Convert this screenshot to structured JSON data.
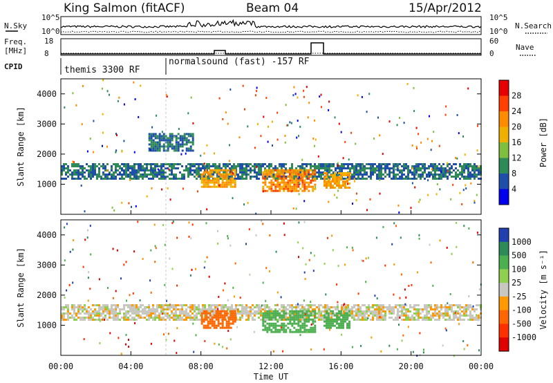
{
  "header": {
    "station": "King Salmon (fitACF)",
    "beam": "Beam 04",
    "date": "15/Apr/2012"
  },
  "top_panels": {
    "nsky_label": "N.Sky",
    "nsearch_label": "N.Search",
    "noise_ticks": [
      "10^5",
      "10^0"
    ],
    "freq_label_line1": "Freq.",
    "freq_label_line2": "[MHz]",
    "freq_ticks": [
      "18",
      "8"
    ],
    "nave_label": "Nave",
    "nave_ticks": [
      "60",
      "0"
    ],
    "cpid_label": "CPID",
    "cpid_segments": [
      "themis 3300 RF",
      "normalsound (fast) -157 RF"
    ]
  },
  "chart_data": [
    {
      "type": "heatmap",
      "name": "power",
      "ylabel": "Slant Range [km]",
      "ylim": [
        0,
        4500
      ],
      "yticks": [
        1000,
        2000,
        3000,
        4000
      ],
      "xlim_hours": [
        0,
        24
      ],
      "colorbar": {
        "label": "Power [dB]",
        "ticks": [
          "28",
          "24",
          "20",
          "16",
          "12",
          "8",
          "4"
        ],
        "colors": [
          "#e60000",
          "#ff4000",
          "#ff8c00",
          "#f0b000",
          "#7fbf3f",
          "#2e8b57",
          "#1f4fa8",
          "#0000ee"
        ]
      },
      "echo_bands": [
        {
          "from_hour": 0,
          "to_hour": 24,
          "range_km": [
            1200,
            1700
          ],
          "power_db": 8
        },
        {
          "from_hour": 5,
          "to_hour": 7.5,
          "range_km": [
            2100,
            2700
          ],
          "power_db": 8
        },
        {
          "from_hour": 8,
          "to_hour": 10,
          "range_km": [
            900,
            1500
          ],
          "power_db": 20
        },
        {
          "from_hour": 11.5,
          "to_hour": 14.5,
          "range_km": [
            800,
            1500
          ],
          "power_db": 22
        },
        {
          "from_hour": 15,
          "to_hour": 16.5,
          "range_km": [
            900,
            1400
          ],
          "power_db": 20
        }
      ]
    },
    {
      "type": "heatmap",
      "name": "velocity",
      "ylabel": "Slant Range [km]",
      "xlabel": "Time UT",
      "ylim": [
        0,
        4500
      ],
      "yticks": [
        1000,
        2000,
        3000,
        4000
      ],
      "xticks": [
        "00:00",
        "04:00",
        "08:00",
        "12:00",
        "16:00",
        "20:00",
        "00:00"
      ],
      "colorbar": {
        "label": "Velocity [m s⁻¹]",
        "ticks": [
          "1000",
          "500",
          "100",
          "25",
          "-25",
          "-100",
          "-500",
          "-1000"
        ],
        "colors": [
          "#2040b0",
          "#2e8b57",
          "#4caf50",
          "#90d050",
          "#c8c8c0",
          "#ff9900",
          "#ff6600",
          "#ff3000",
          "#e00000"
        ]
      },
      "echo_bands": [
        {
          "from_hour": 0,
          "to_hour": 24,
          "range_km": [
            1200,
            1700
          ],
          "velocity_ms": 0
        },
        {
          "from_hour": 8,
          "to_hour": 10,
          "range_km": [
            900,
            1500
          ],
          "velocity_ms": -300
        },
        {
          "from_hour": 11.5,
          "to_hour": 14.5,
          "range_km": [
            800,
            1500
          ],
          "velocity_ms": 150
        },
        {
          "from_hour": 15,
          "to_hour": 16.5,
          "range_km": [
            900,
            1500
          ],
          "velocity_ms": 300
        }
      ]
    }
  ]
}
